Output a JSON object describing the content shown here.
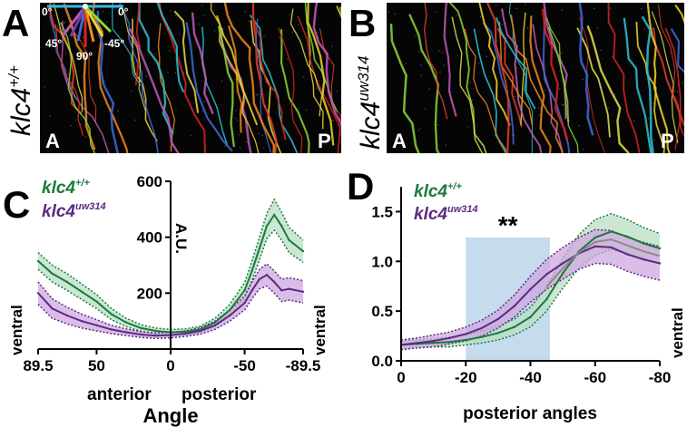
{
  "panels": {
    "A": {
      "letter": "A",
      "genotype_base": "klc4",
      "genotype_sup": "+/+",
      "corner_left": "A",
      "corner_right": "P",
      "angle_legend": [
        "0°",
        "0°",
        "45°",
        "-45°",
        "90°"
      ]
    },
    "B": {
      "letter": "B",
      "genotype_base": "klc4",
      "genotype_sup": "uw314",
      "corner_left": "A",
      "corner_right": "P"
    },
    "C": {
      "letter": "C"
    },
    "D": {
      "letter": "D"
    }
  },
  "colors": {
    "wildtype": "#1a7a3c",
    "wildtype_band": "#b9dfc4",
    "mutant": "#5d2a82",
    "mutant_band": "#cfa8df",
    "highlight": "#c6dbee",
    "gray_line": "#8a8a8a",
    "image_bg": "#050505"
  },
  "chart_data": [
    {
      "panel": "C",
      "type": "line",
      "title": "",
      "xlabel": "Angle",
      "ylabel": "A.U.",
      "xlabel_secondary": [
        "anterior",
        "posterior"
      ],
      "side_labels": [
        "ventral",
        "ventral"
      ],
      "xlim": [
        89.5,
        -89.5
      ],
      "ylim": [
        0,
        600
      ],
      "xticks": [
        {
          "value": 89.5,
          "label": "89.5"
        },
        {
          "value": 50,
          "label": "50"
        },
        {
          "value": 0,
          "label": "0"
        },
        {
          "value": -50,
          "label": "-50"
        },
        {
          "value": -89.5,
          "label": "-89.5"
        }
      ],
      "yticks": [
        {
          "value": 200,
          "label": "200"
        },
        {
          "value": 400,
          "label": "400"
        },
        {
          "value": 600,
          "label": "600"
        }
      ],
      "x": [
        89.5,
        80,
        70,
        60,
        50,
        40,
        30,
        20,
        10,
        0,
        -10,
        -20,
        -30,
        -40,
        -50,
        -55,
        -60,
        -65,
        -70,
        -75,
        -80,
        -89.5
      ],
      "series": [
        {
          "name": "klc4+/+",
          "legend_base": "klc4",
          "legend_sup": "+/+",
          "color": "#1a7a3c",
          "band_color": "#b9dfc4",
          "values": [
            315,
            270,
            240,
            205,
            170,
            125,
            95,
            75,
            65,
            60,
            62,
            70,
            95,
            140,
            210,
            280,
            360,
            440,
            480,
            440,
            390,
            350
          ],
          "err": [
            30,
            30,
            30,
            28,
            25,
            20,
            15,
            12,
            10,
            10,
            10,
            12,
            15,
            20,
            28,
            35,
            40,
            45,
            55,
            50,
            45,
            40
          ]
        },
        {
          "name": "klc4uw314",
          "legend_base": "klc4",
          "legend_sup": "uw314",
          "color": "#5d2a82",
          "band_color": "#cfa8df",
          "values": [
            200,
            145,
            120,
            100,
            85,
            70,
            60,
            52,
            48,
            50,
            55,
            65,
            85,
            120,
            165,
            210,
            250,
            265,
            240,
            210,
            215,
            205
          ],
          "err": [
            40,
            35,
            30,
            25,
            20,
            15,
            12,
            10,
            10,
            10,
            10,
            12,
            15,
            20,
            25,
            30,
            35,
            40,
            40,
            40,
            40,
            40
          ]
        }
      ]
    },
    {
      "panel": "D",
      "type": "line",
      "title": "",
      "xlabel": "posterior angles",
      "ylabel": "",
      "side_labels": [
        "ventral"
      ],
      "xlim": [
        0,
        -80
      ],
      "ylim": [
        0,
        1.75
      ],
      "grid": false,
      "significance": {
        "label": "**",
        "x_range": [
          -20,
          -46
        ]
      },
      "xticks": [
        {
          "value": 0,
          "label": "0"
        },
        {
          "value": -20,
          "label": "-20"
        },
        {
          "value": -40,
          "label": "-40"
        },
        {
          "value": -60,
          "label": "-60"
        },
        {
          "value": -80,
          "label": "-80"
        }
      ],
      "yticks": [
        {
          "value": 0,
          "label": "0.0"
        },
        {
          "value": 0.5,
          "label": "0.5"
        },
        {
          "value": 1.0,
          "label": "1.0"
        },
        {
          "value": 1.5,
          "label": "1.5"
        }
      ],
      "x": [
        0,
        -5,
        -10,
        -15,
        -20,
        -25,
        -30,
        -35,
        -40,
        -45,
        -50,
        -55,
        -60,
        -65,
        -70,
        -75,
        -80
      ],
      "series": [
        {
          "name": "klc4+/+",
          "legend_base": "klc4",
          "legend_sup": "+/+",
          "color": "#1a7a3c",
          "band_color": "#b9dfc4",
          "values": [
            0.16,
            0.17,
            0.18,
            0.19,
            0.21,
            0.24,
            0.28,
            0.34,
            0.44,
            0.62,
            0.88,
            1.1,
            1.24,
            1.3,
            1.25,
            1.18,
            1.13
          ],
          "err": [
            0.04,
            0.04,
            0.04,
            0.05,
            0.05,
            0.06,
            0.07,
            0.08,
            0.1,
            0.12,
            0.15,
            0.17,
            0.18,
            0.18,
            0.17,
            0.16,
            0.15
          ]
        },
        {
          "name": "klc4uw314",
          "legend_base": "klc4",
          "legend_sup": "uw314",
          "color": "#5d2a82",
          "band_color": "#cfa8df",
          "values": [
            0.16,
            0.18,
            0.2,
            0.23,
            0.27,
            0.33,
            0.42,
            0.55,
            0.72,
            0.87,
            0.98,
            1.08,
            1.15,
            1.14,
            1.07,
            1.02,
            0.98
          ],
          "err": [
            0.05,
            0.05,
            0.06,
            0.06,
            0.07,
            0.08,
            0.09,
            0.11,
            0.13,
            0.15,
            0.16,
            0.16,
            0.17,
            0.17,
            0.17,
            0.17,
            0.17
          ]
        }
      ]
    }
  ]
}
